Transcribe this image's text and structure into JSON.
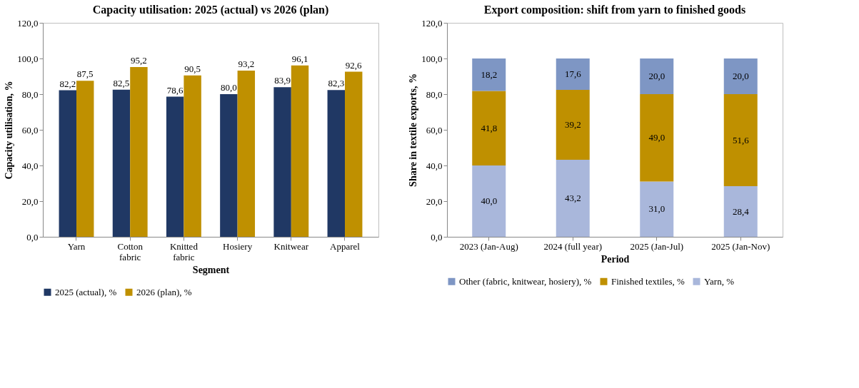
{
  "chart_data": [
    {
      "type": "bar",
      "title": "Capacity utilisation: 2025 (actual) vs 2026 (plan)",
      "xlabel": "Segment",
      "ylabel": "Capacity utilisation, %",
      "categories": [
        "Yarn",
        "Cotton fabric",
        "Knitted fabric",
        "Hosiery",
        "Knitwear",
        "Apparel"
      ],
      "series": [
        {
          "name": "2025 (actual), %",
          "color": "#203864",
          "values": [
            82.2,
            82.5,
            78.6,
            80.0,
            83.9,
            82.3
          ],
          "value_labels": [
            "82,2",
            "82,5",
            "78,6",
            "80,0",
            "83,9",
            "82,3"
          ]
        },
        {
          "name": "2026 (plan), %",
          "color": "#bf9000",
          "values": [
            87.5,
            95.2,
            90.5,
            93.2,
            96.1,
            92.6
          ],
          "value_labels": [
            "87,5",
            "95,2",
            "90,5",
            "93,2",
            "96,1",
            "92,6"
          ]
        }
      ],
      "ylim": [
        0,
        120
      ],
      "yticks": [
        {
          "value": 0,
          "label": "0,0"
        },
        {
          "value": 20,
          "label": "20,0"
        },
        {
          "value": 40,
          "label": "40,0"
        },
        {
          "value": 60,
          "label": "60,0"
        },
        {
          "value": 80,
          "label": "80,0"
        },
        {
          "value": 100,
          "label": "100,0"
        },
        {
          "value": 120,
          "label": "120,0"
        }
      ],
      "legend": "bottom"
    },
    {
      "type": "bar",
      "stacked": true,
      "title": "Export composition: shift from yarn to finished goods",
      "xlabel": "Period",
      "ylabel": "Share in textile exports, %",
      "categories": [
        "2023 (Jan-Aug)",
        "2024 (full year)",
        "2025 (Jan-Jul)",
        "2025 (Jan-Nov)"
      ],
      "series": [
        {
          "name": "Yarn, %",
          "color": "#a9b7db",
          "values": [
            40.0,
            43.2,
            31.0,
            28.4
          ],
          "value_labels": [
            "40,0",
            "43,2",
            "31,0",
            "28,4"
          ]
        },
        {
          "name": "Finished textiles, %",
          "color": "#bf9000",
          "values": [
            41.8,
            39.2,
            49.0,
            51.6
          ],
          "value_labels": [
            "41,8",
            "39,2",
            "49,0",
            "51,6"
          ]
        },
        {
          "name": "Other (fabric, knitwear, hosiery), %",
          "color": "#7e96c4",
          "values": [
            18.2,
            17.6,
            20.0,
            20.0
          ],
          "value_labels": [
            "18,2",
            "17,6",
            "20,0",
            "20,0"
          ]
        }
      ],
      "ylim": [
        0,
        120
      ],
      "yticks": [
        {
          "value": 0,
          "label": "0,0"
        },
        {
          "value": 20,
          "label": "20,0"
        },
        {
          "value": 40,
          "label": "40,0"
        },
        {
          "value": 60,
          "label": "60,0"
        },
        {
          "value": 80,
          "label": "80,0"
        },
        {
          "value": 100,
          "label": "100,0"
        },
        {
          "value": 120,
          "label": "120,0"
        }
      ],
      "legend": "bottom"
    }
  ]
}
